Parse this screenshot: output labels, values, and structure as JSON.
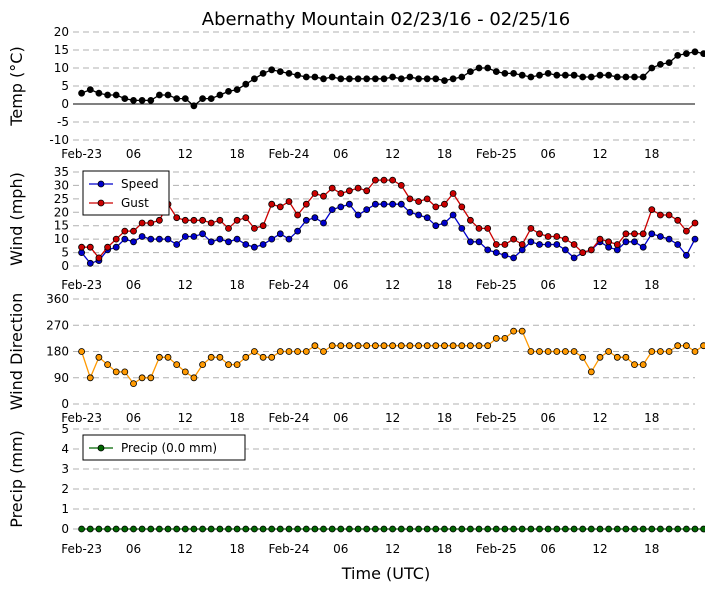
{
  "title": "Abernathy Mountain 02/23/16 - 02/25/16",
  "xlabel": "Time (UTC)",
  "x_tick_labels": [
    "Feb-23",
    "06",
    "12",
    "18",
    "Feb-24",
    "06",
    "12",
    "18",
    "Feb-25",
    "06",
    "12",
    "18"
  ],
  "x_tick_hours": [
    0,
    6,
    12,
    18,
    24,
    30,
    36,
    42,
    48,
    54,
    60,
    66
  ],
  "x_range_hours": [
    -1,
    71
  ],
  "chart_data": [
    {
      "type": "line",
      "panel": "temp",
      "ylabel": "Temp (°C)",
      "ylim": [
        -10,
        20
      ],
      "yticks": [
        -10,
        -5,
        0,
        5,
        10,
        15,
        20
      ],
      "grid": true,
      "zero_line": true,
      "x_hours_step": 1,
      "series": [
        {
          "color": "#000000",
          "values": [
            3,
            4,
            3,
            2.5,
            2.5,
            1.5,
            1,
            1,
            1,
            2.5,
            2.5,
            1.5,
            1.5,
            -0.5,
            1.5,
            1.5,
            2.5,
            3.5,
            4,
            5.5,
            7,
            8.5,
            9.5,
            9,
            8.5,
            8,
            7.5,
            7.5,
            7,
            7.5,
            7,
            7,
            7,
            7,
            7,
            7,
            7.5,
            7,
            7.5,
            7,
            7,
            7,
            6.5,
            7,
            7.5,
            9,
            10,
            10,
            9,
            8.5,
            8.5,
            8,
            7.5,
            8,
            8.5,
            8,
            8,
            8,
            7.5,
            7.5,
            8,
            8,
            7.5,
            7.5,
            7.5,
            7.5,
            10,
            11,
            11.5,
            13.5,
            14,
            14.5,
            14
          ]
        }
      ]
    },
    {
      "type": "line",
      "panel": "wind",
      "ylabel": "Wind (mph)",
      "ylim": [
        0,
        35
      ],
      "yticks": [
        0,
        5,
        10,
        15,
        20,
        25,
        30,
        35
      ],
      "grid": true,
      "legend": "top-left",
      "x_hours_step": 1,
      "series": [
        {
          "name": "Speed",
          "color": "#0000cc",
          "values": [
            5,
            1,
            2,
            6,
            7,
            10,
            9,
            11,
            10,
            10,
            10,
            8,
            11,
            11,
            12,
            9,
            10,
            9,
            10,
            8,
            7,
            8,
            10,
            12,
            10,
            13,
            17,
            18,
            16,
            21,
            22,
            23,
            19,
            21,
            23,
            23,
            23,
            23,
            20,
            19,
            18,
            15,
            16,
            19,
            14,
            9,
            9,
            6,
            5,
            4,
            3,
            6,
            9,
            8,
            8,
            8,
            6,
            3,
            5,
            6,
            9,
            7,
            6,
            9,
            9,
            7,
            12,
            11,
            10,
            8,
            4,
            10
          ]
        },
        {
          "name": "Gust",
          "color": "#cc0000",
          "values": [
            7,
            7,
            3,
            7,
            10,
            13,
            13,
            16,
            16,
            17,
            23,
            18,
            17,
            17,
            17,
            16,
            17,
            14,
            17,
            18,
            14,
            15,
            23,
            22,
            24,
            19,
            23,
            27,
            26,
            29,
            27,
            28,
            29,
            28,
            32,
            32,
            32,
            30,
            25,
            24,
            25,
            22,
            23,
            27,
            22,
            17,
            14,
            14,
            8,
            8,
            10,
            8,
            14,
            12,
            11,
            11,
            10,
            8,
            5,
            6,
            10,
            9,
            8,
            12,
            12,
            12,
            21,
            19,
            19,
            17,
            13,
            16
          ]
        }
      ]
    },
    {
      "type": "scatter",
      "panel": "direction",
      "ylabel": "Wind Direction",
      "ylim": [
        0,
        360
      ],
      "yticks": [
        0,
        90,
        180,
        270,
        360
      ],
      "grid": true,
      "x_hours_step": 1,
      "series": [
        {
          "color": "#ff9900",
          "values": [
            180,
            90,
            160,
            135,
            110,
            110,
            70,
            90,
            90,
            160,
            160,
            135,
            110,
            90,
            135,
            160,
            160,
            135,
            135,
            160,
            180,
            160,
            160,
            180,
            180,
            180,
            180,
            200,
            180,
            200,
            200,
            200,
            200,
            200,
            200,
            200,
            200,
            200,
            200,
            200,
            200,
            200,
            200,
            200,
            200,
            200,
            200,
            200,
            225,
            225,
            250,
            250,
            180,
            180,
            180,
            180,
            180,
            180,
            160,
            110,
            160,
            180,
            160,
            160,
            135,
            135,
            180,
            180,
            180,
            200,
            200,
            180,
            200
          ]
        }
      ]
    },
    {
      "type": "line",
      "panel": "precip",
      "ylabel": "Precip (mm)",
      "ylim": [
        0,
        5
      ],
      "yticks": [
        0,
        1,
        2,
        3,
        4,
        5
      ],
      "grid": true,
      "legend": "top-left",
      "x_hours_step": 1,
      "series": [
        {
          "name": "Precip (0.0 mm)",
          "color": "#006600",
          "values": [
            0,
            0,
            0,
            0,
            0,
            0,
            0,
            0,
            0,
            0,
            0,
            0,
            0,
            0,
            0,
            0,
            0,
            0,
            0,
            0,
            0,
            0,
            0,
            0,
            0,
            0,
            0,
            0,
            0,
            0,
            0,
            0,
            0,
            0,
            0,
            0,
            0,
            0,
            0,
            0,
            0,
            0,
            0,
            0,
            0,
            0,
            0,
            0,
            0,
            0,
            0,
            0,
            0,
            0,
            0,
            0,
            0,
            0,
            0,
            0,
            0,
            0,
            0,
            0,
            0,
            0,
            0,
            0,
            0,
            0,
            0,
            0,
            0
          ]
        }
      ]
    }
  ]
}
